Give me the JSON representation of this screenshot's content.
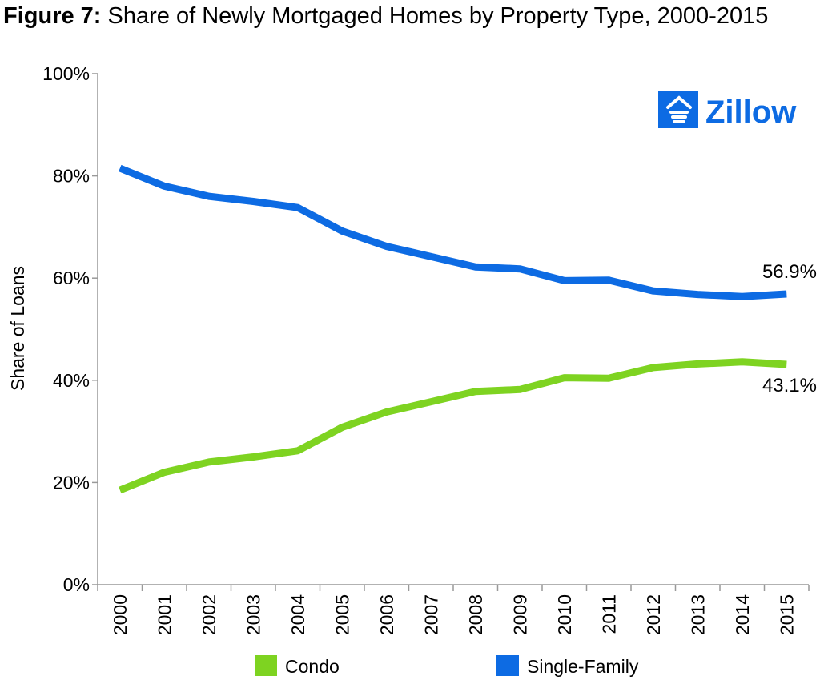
{
  "title": {
    "prefix": "Figure 7:",
    "text": " Share of Newly Mortgaged Homes by Property Type, 2000-2015"
  },
  "logo": {
    "text": "Zillow",
    "icon": "zillow-house-icon",
    "color": "#0D6BE3"
  },
  "colors": {
    "condo": "#7ED321",
    "single_family": "#0D6BE3"
  },
  "chart_data": {
    "type": "line",
    "title": "Share of Newly Mortgaged Homes by Property Type, 2000-2015",
    "xlabel": "",
    "ylabel": "Share of Loans",
    "x": [
      "2000",
      "2001",
      "2002",
      "2003",
      "2004",
      "2005",
      "2006",
      "2007",
      "2008",
      "2009",
      "2010",
      "2011",
      "2012",
      "2013",
      "2014",
      "2015"
    ],
    "ylim": [
      0,
      100
    ],
    "yticks": [
      "0%",
      "20%",
      "40%",
      "60%",
      "80%",
      "100%"
    ],
    "grid": false,
    "legend_position": "bottom",
    "series": [
      {
        "name": "Condo",
        "color": "#7ED321",
        "values": [
          18.5,
          22.0,
          24.0,
          25.0,
          26.2,
          30.8,
          33.8,
          35.8,
          37.8,
          38.2,
          40.5,
          40.4,
          42.5,
          43.2,
          43.6,
          43.1
        ],
        "end_label": "43.1%"
      },
      {
        "name": "Single-Family",
        "color": "#0D6BE3",
        "values": [
          81.5,
          78.0,
          76.0,
          75.0,
          73.8,
          69.2,
          66.2,
          64.2,
          62.2,
          61.8,
          59.5,
          59.6,
          57.5,
          56.8,
          56.4,
          56.9
        ],
        "end_label": "56.9%"
      }
    ]
  }
}
